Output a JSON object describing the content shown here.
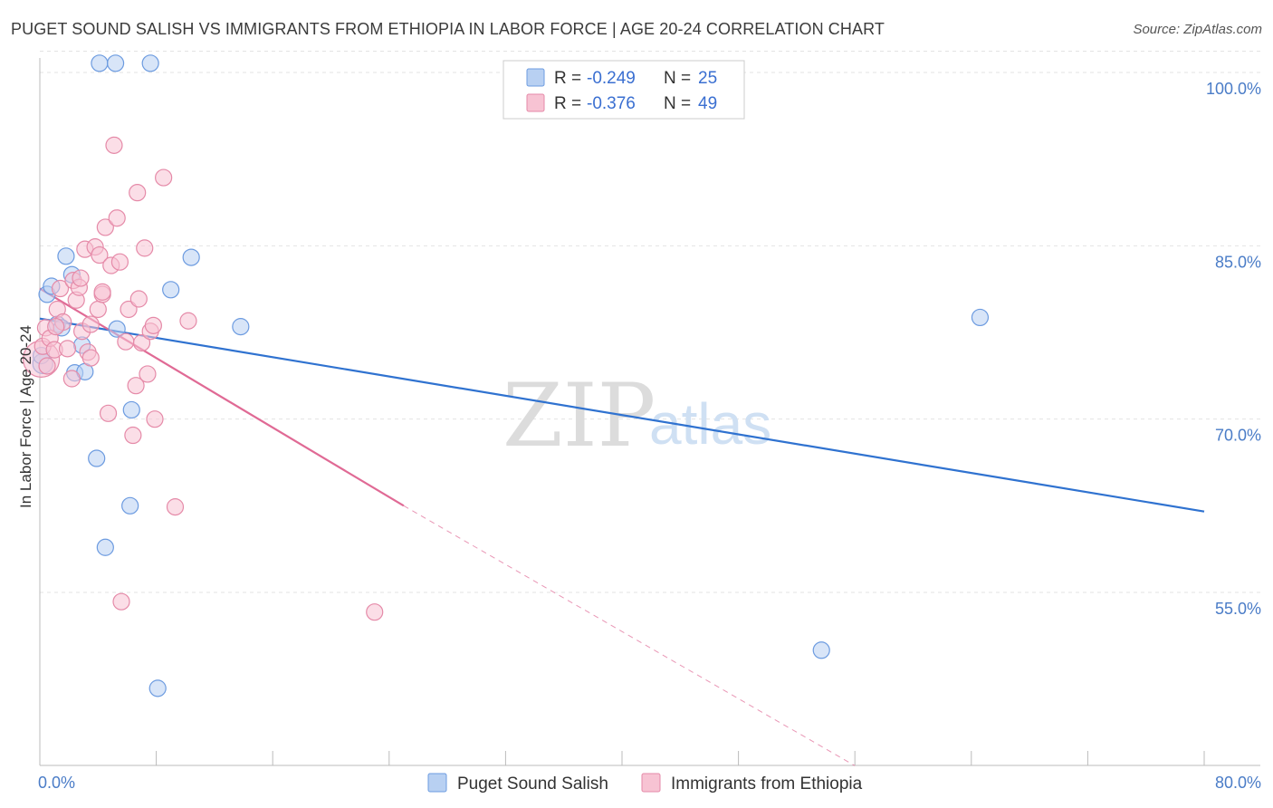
{
  "title": "PUGET SOUND SALISH VS IMMIGRANTS FROM ETHIOPIA IN LABOR FORCE | AGE 20-24 CORRELATION CHART",
  "source": "Source: ZipAtlas.com",
  "watermark": {
    "zip": "ZIP",
    "atlas": "atlas"
  },
  "colors": {
    "blue": "#6c9be0",
    "blue_fill": "#b8d0f2",
    "blue_line": "#2f72d0",
    "pink": "#e58aa8",
    "pink_fill": "#f7c3d3",
    "pink_line": "#e06a95",
    "tick_text": "#4a7cc7"
  },
  "legend": {
    "rows": [
      {
        "r_label": "R =",
        "r_value": "-0.249",
        "n_label": "N =",
        "n_value": "25"
      },
      {
        "r_label": "R =",
        "r_value": "-0.376",
        "n_label": "N =",
        "n_value": "49"
      }
    ]
  },
  "chart_data": {
    "type": "scatter",
    "ylabel": "In Labor Force | Age 20-24",
    "xlim": [
      0,
      80
    ],
    "ylim": [
      40,
      102
    ],
    "x_tick_labels": [
      {
        "value": 0,
        "label": "0.0%"
      },
      {
        "value": 80,
        "label": "80.0%"
      }
    ],
    "y_tick_labels": [
      {
        "value": 100,
        "label": "100.0%"
      },
      {
        "value": 85,
        "label": "85.0%"
      },
      {
        "value": 70,
        "label": "70.0%"
      },
      {
        "value": 55,
        "label": "55.0%"
      }
    ],
    "grid": true,
    "series": [
      {
        "name": "Puget Sound Salish",
        "color": "blue",
        "points": [
          [
            0.2,
            74.8
          ],
          [
            0.5,
            80.8
          ],
          [
            0.8,
            81.5
          ],
          [
            1.2,
            78.2
          ],
          [
            1.5,
            77.9
          ],
          [
            1.8,
            84.1
          ],
          [
            2.2,
            82.5
          ],
          [
            2.4,
            74.0
          ],
          [
            2.9,
            76.4
          ],
          [
            3.1,
            74.1
          ],
          [
            3.9,
            66.6
          ],
          [
            4.1,
            100.8
          ],
          [
            5.2,
            100.8
          ],
          [
            5.3,
            77.8
          ],
          [
            6.2,
            62.5
          ],
          [
            6.3,
            70.8
          ],
          [
            4.5,
            58.9
          ],
          [
            7.6,
            100.8
          ],
          [
            8.1,
            46.7
          ],
          [
            9.0,
            81.2
          ],
          [
            10.4,
            84.0
          ],
          [
            13.8,
            78.0
          ],
          [
            64.6,
            78.8
          ],
          [
            53.7,
            50.0
          ],
          [
            0.1,
            75.5
          ]
        ],
        "trend": {
          "x0": 0.0,
          "y0": 78.7,
          "x1": 80.0,
          "y1": 62.0
        }
      },
      {
        "name": "Immigrants from Ethiopia",
        "color": "pink",
        "points": [
          [
            0.1,
            75.2
          ],
          [
            0.2,
            76.3
          ],
          [
            0.4,
            77.9
          ],
          [
            0.7,
            77.0
          ],
          [
            1.0,
            76.0
          ],
          [
            1.2,
            79.5
          ],
          [
            1.4,
            81.3
          ],
          [
            1.6,
            78.4
          ],
          [
            1.9,
            76.1
          ],
          [
            2.2,
            73.5
          ],
          [
            2.3,
            82.0
          ],
          [
            2.5,
            80.3
          ],
          [
            2.7,
            81.4
          ],
          [
            2.9,
            77.6
          ],
          [
            3.1,
            84.7
          ],
          [
            3.3,
            75.8
          ],
          [
            3.5,
            75.3
          ],
          [
            3.5,
            78.2
          ],
          [
            3.8,
            84.9
          ],
          [
            4.0,
            79.5
          ],
          [
            4.1,
            84.2
          ],
          [
            4.3,
            80.8
          ],
          [
            4.5,
            86.6
          ],
          [
            4.7,
            70.5
          ],
          [
            4.9,
            83.3
          ],
          [
            5.1,
            93.7
          ],
          [
            5.3,
            87.4
          ],
          [
            5.5,
            83.6
          ],
          [
            5.6,
            54.2
          ],
          [
            5.9,
            76.7
          ],
          [
            6.1,
            79.5
          ],
          [
            6.4,
            68.6
          ],
          [
            6.6,
            72.9
          ],
          [
            6.7,
            89.6
          ],
          [
            6.8,
            80.4
          ],
          [
            7.0,
            76.6
          ],
          [
            7.2,
            84.8
          ],
          [
            7.4,
            73.9
          ],
          [
            7.6,
            77.6
          ],
          [
            7.8,
            78.1
          ],
          [
            7.9,
            70.0
          ],
          [
            8.5,
            90.9
          ],
          [
            9.3,
            62.4
          ],
          [
            10.2,
            78.5
          ],
          [
            23.0,
            53.3
          ],
          [
            0.5,
            74.6
          ],
          [
            1.1,
            78.0
          ],
          [
            2.8,
            82.2
          ],
          [
            4.3,
            81.0
          ]
        ],
        "trend": {
          "x0": 0.0,
          "y0": 81.3,
          "x1": 25.0,
          "y1": 62.5
        },
        "trend_ext": {
          "x0": 25.0,
          "y0": 62.5,
          "x1": 56.0,
          "y1": 40.0
        }
      }
    ]
  },
  "bottom_legend": [
    {
      "label": "Puget Sound Salish",
      "color": "blue"
    },
    {
      "label": "Immigrants from Ethiopia",
      "color": "pink"
    }
  ]
}
